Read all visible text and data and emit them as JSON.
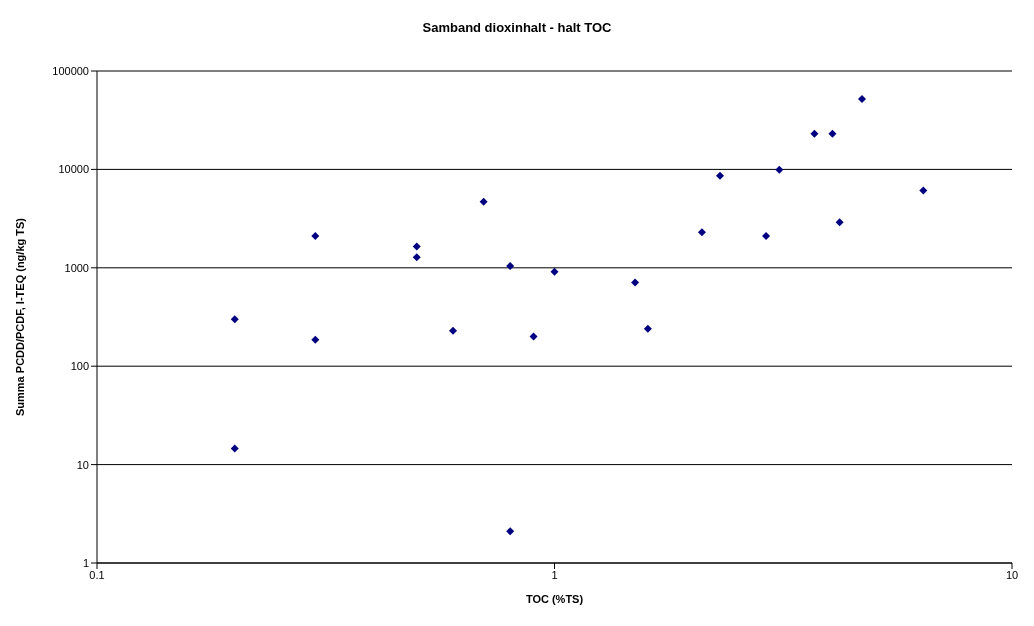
{
  "chart_data": {
    "type": "scatter",
    "title": "Samband dioxinhalt - halt TOC",
    "xlabel": "TOC (%TS)",
    "ylabel": "Summa PCDD/PCDF, I-TEQ (ng/kg TS)",
    "log": "xy",
    "xlim": [
      0.1,
      10
    ],
    "xticks": [
      0.1,
      1,
      10
    ],
    "ylim": [
      1,
      100000
    ],
    "yticks": [
      1,
      10,
      100,
      1000,
      10000,
      100000
    ],
    "grid": "y",
    "marker": "diamond",
    "legend": false,
    "series": [
      {
        "color": "#000080",
        "x": [
          0.2,
          0.2,
          0.3,
          0.3,
          0.5,
          0.5,
          0.6,
          0.7,
          0.8,
          0.8,
          0.9,
          1,
          1.5,
          1.6,
          2.1,
          2.3,
          2.9,
          3.1,
          3.7,
          4.05,
          4.2,
          4.7,
          6.4
        ],
        "values": [
          300,
          14.6,
          2100,
          186,
          1650,
          1280,
          229,
          4700,
          1040,
          2.1,
          200,
          910,
          710,
          240,
          2300,
          8600,
          2100,
          9900,
          23000,
          23000,
          2900,
          52000,
          6100
        ]
      }
    ]
  }
}
